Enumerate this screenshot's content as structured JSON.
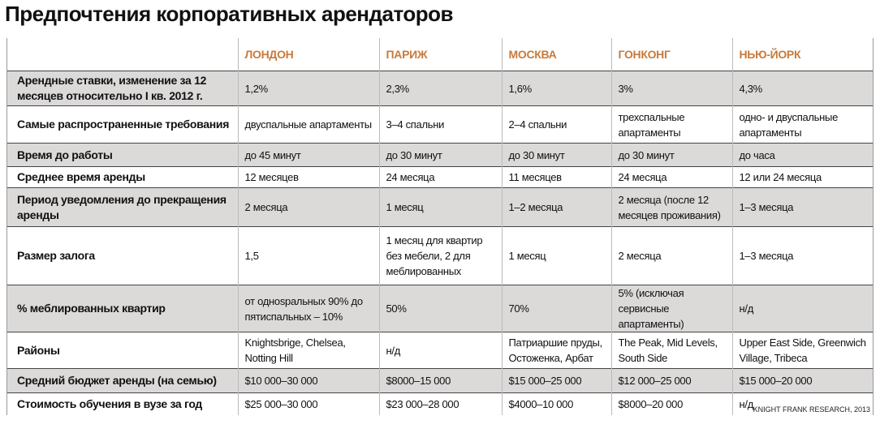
{
  "header": {
    "title": "Предпочтения корпоративных арендаторов"
  },
  "table": {
    "columns": [
      "ЛОНДОН",
      "ПАРИЖ",
      "МОСКВА",
      "ГОНКОНГ",
      "НЬЮ-ЙОРК"
    ],
    "rows": [
      [
        "Арендные ставки, изменение за 12 месяцев относительно I кв. 2012 г.",
        "1,2%",
        "2,3%",
        "1,6%",
        "3%",
        "4,3%"
      ],
      [
        "Самые распространенные требования",
        "двуспальные апартаменты",
        "3–4 спальни",
        "2–4 спальни",
        "трехспальные апартаменты",
        "одно- и двуспальные апартаменты"
      ],
      [
        "Время до работы",
        "до 45 минут",
        "до 30 минут",
        "до 30 минут",
        "до 30 минут",
        "до часа"
      ],
      [
        "Среднее время аренды",
        "12 месяцев",
        "24 месяца",
        "11 месяцев",
        "24 месяца",
        "12 или 24 месяца"
      ],
      [
        "Период уведомления до прекращения аренды",
        "2 месяца",
        "1 месяц",
        "1–2 месяца",
        "2 месяца (после 12 месяцев проживания)",
        "1–3 месяца"
      ],
      [
        "Размер залога",
        "1,5",
        "1 месяц для квартир без мебели, 2 для меблированных",
        "1 месяц",
        "2 месяца",
        "1–3 месяца"
      ],
      [
        "% меблированных квартир",
        "от однospальных 90% до пятиспальных – 10%",
        "50%",
        "70%",
        "5% (исключая сервисные апартаменты)",
        "н/д"
      ],
      [
        "Районы",
        "Knightsbrige, Chelsea, Notting Hill",
        "н/д",
        "Патриаршие пруды, Остоженка, Арбат",
        "The Peak, Mid Levels, South Side",
        "Upper East Side, Greenwich Village, Tribeca"
      ],
      [
        "Средний бюджет аренды (на семью)",
        "$10 000–30 000",
        "$8000–15 000",
        "$15 000–25 000",
        "$12 000–25 000",
        "$15 000–20 000"
      ],
      [
        "Стоимость обучения в вузе за год",
        "$25 000–30 000",
        "$23 000–28 000",
        "$4000–10 000",
        "$8000–20 000",
        "н/д"
      ]
    ]
  },
  "source": "KNIGHT FRANK RESEARCH, 2013"
}
